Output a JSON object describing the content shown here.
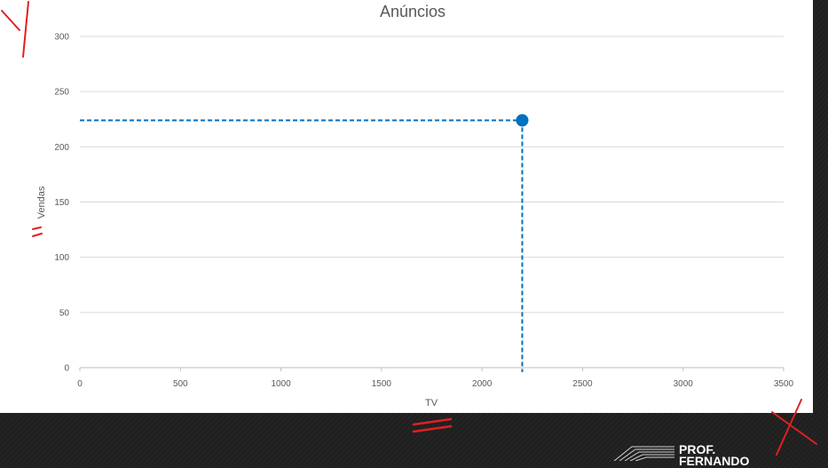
{
  "chart_data": {
    "type": "scatter",
    "title": "Anúncios",
    "xlabel": "TV",
    "ylabel": "Vendas",
    "xlim": [
      0,
      3500
    ],
    "ylim": [
      0,
      300
    ],
    "x_ticks": [
      0,
      500,
      1000,
      1500,
      2000,
      2500,
      3000,
      3500
    ],
    "y_ticks": [
      0,
      50,
      100,
      150,
      200,
      250,
      300
    ],
    "grid": "horizontal",
    "series": [
      {
        "x": [
          2200
        ],
        "y": [
          224
        ],
        "color": "#0070c0"
      }
    ],
    "guide_lines": {
      "style": "dashed",
      "color": "#0070c0",
      "at": {
        "x": 2200,
        "y": 224
      }
    }
  },
  "brand": {
    "line1": "PROF.",
    "line2": "FERNANDO"
  },
  "colors": {
    "annotation": "#e02020",
    "series": "#0070c0",
    "background": "#1f1f1f",
    "panel": "#ffffff"
  }
}
